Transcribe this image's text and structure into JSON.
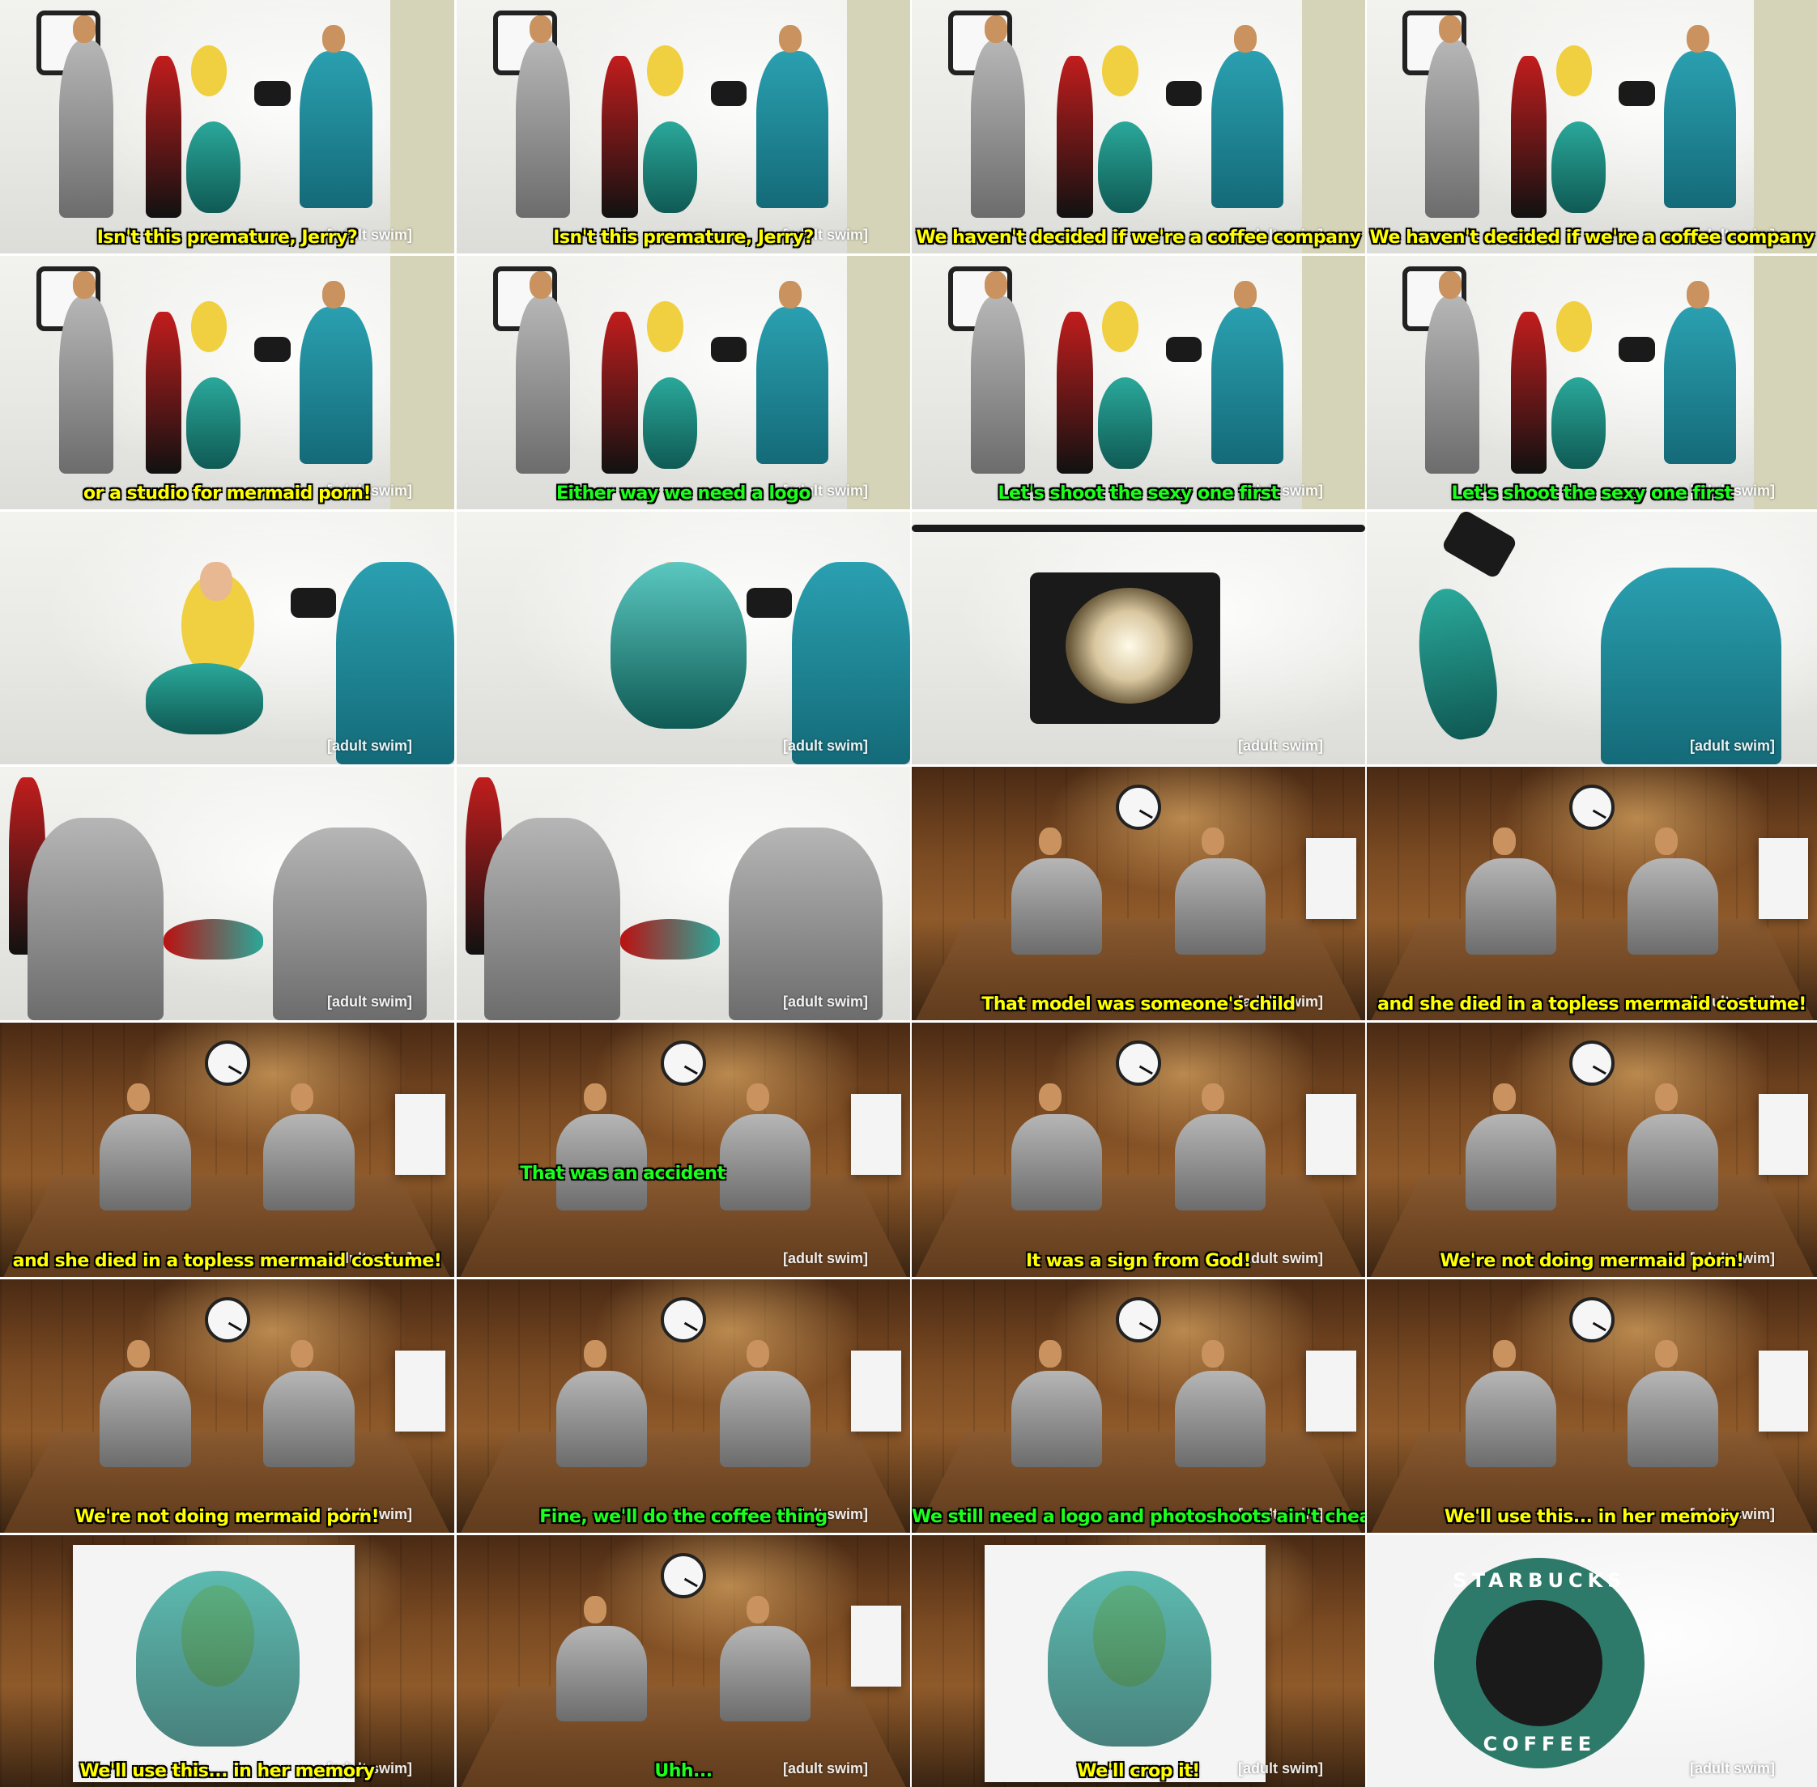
{
  "watermark": "[adult swim]",
  "colors": {
    "caption_yellow": "#ffff00",
    "caption_green": "#1bff1b",
    "studio_background": "#eeeeea",
    "office_wood": "#7a4a22",
    "starbucks_green": "#2e7a6a"
  },
  "logo": {
    "top_text": "STARBUCKS",
    "bottom_text": "COFFEE"
  },
  "panels": [
    {
      "scene": "studio",
      "caption": "Isn't this premature, Jerry?",
      "caption_color": "#ffff00"
    },
    {
      "scene": "studio",
      "caption": "Isn't this premature, Jerry?",
      "caption_color": "#ffff00"
    },
    {
      "scene": "studio",
      "caption": "We haven't decided if we're a coffee company",
      "caption_color": "#ffff00"
    },
    {
      "scene": "studio",
      "caption": "We haven't decided if we're a coffee company",
      "caption_color": "#ffff00"
    },
    {
      "scene": "studio",
      "caption": "or a studio for mermaid porn!",
      "caption_color": "#ffff00"
    },
    {
      "scene": "studio",
      "caption": "Either way we need a logo",
      "caption_color": "#1bff1b"
    },
    {
      "scene": "studio",
      "caption": "Let's shoot the sexy one first",
      "caption_color": "#1bff1b"
    },
    {
      "scene": "studio",
      "caption": "Let's shoot the sexy one first",
      "caption_color": "#1bff1b"
    },
    {
      "scene": "mermaid",
      "caption": "",
      "caption_color": "#ffff00"
    },
    {
      "scene": "mermaid-pose",
      "caption": "",
      "caption_color": "#ffff00"
    },
    {
      "scene": "lamp",
      "caption": "",
      "caption_color": "#ffff00"
    },
    {
      "scene": "lamp-fall",
      "caption": "",
      "caption_color": "#ffff00"
    },
    {
      "scene": "aftermath",
      "caption": "",
      "caption_color": "#ffff00"
    },
    {
      "scene": "aftermath",
      "caption": "",
      "caption_color": "#ffff00"
    },
    {
      "scene": "office",
      "caption": "That model was someone's child",
      "caption_color": "#ffff00"
    },
    {
      "scene": "office",
      "caption": "and she died in a topless mermaid costume!",
      "caption_color": "#ffff00"
    },
    {
      "scene": "office",
      "caption": "and she died in a topless mermaid costume!",
      "caption_color": "#ffff00"
    },
    {
      "scene": "office",
      "caption": "That was an accident",
      "caption_color": "#1bff1b",
      "caption_mid": true
    },
    {
      "scene": "office",
      "caption": "It was a sign from God!",
      "caption_color": "#ffff00"
    },
    {
      "scene": "office",
      "caption": "We're not doing mermaid porn!",
      "caption_color": "#ffff00"
    },
    {
      "scene": "office",
      "caption": "We're not doing mermaid porn!",
      "caption_color": "#ffff00"
    },
    {
      "scene": "office",
      "caption": "Fine, we'll do the coffee thing",
      "caption_color": "#1bff1b"
    },
    {
      "scene": "office",
      "caption": "We still need a logo and photoshoots ain't cheap",
      "caption_color": "#1bff1b"
    },
    {
      "scene": "office",
      "caption": "We'll use this... in her memory",
      "caption_color": "#ffff00"
    },
    {
      "scene": "photo",
      "caption": "We'll use this... in her memory",
      "caption_color": "#ffff00"
    },
    {
      "scene": "office-close",
      "caption": "Uhh...",
      "caption_color": "#1bff1b"
    },
    {
      "scene": "photo",
      "caption": "We'll crop it!",
      "caption_color": "#ffff00"
    },
    {
      "scene": "logo",
      "caption": "",
      "caption_color": "#ffff00"
    }
  ]
}
